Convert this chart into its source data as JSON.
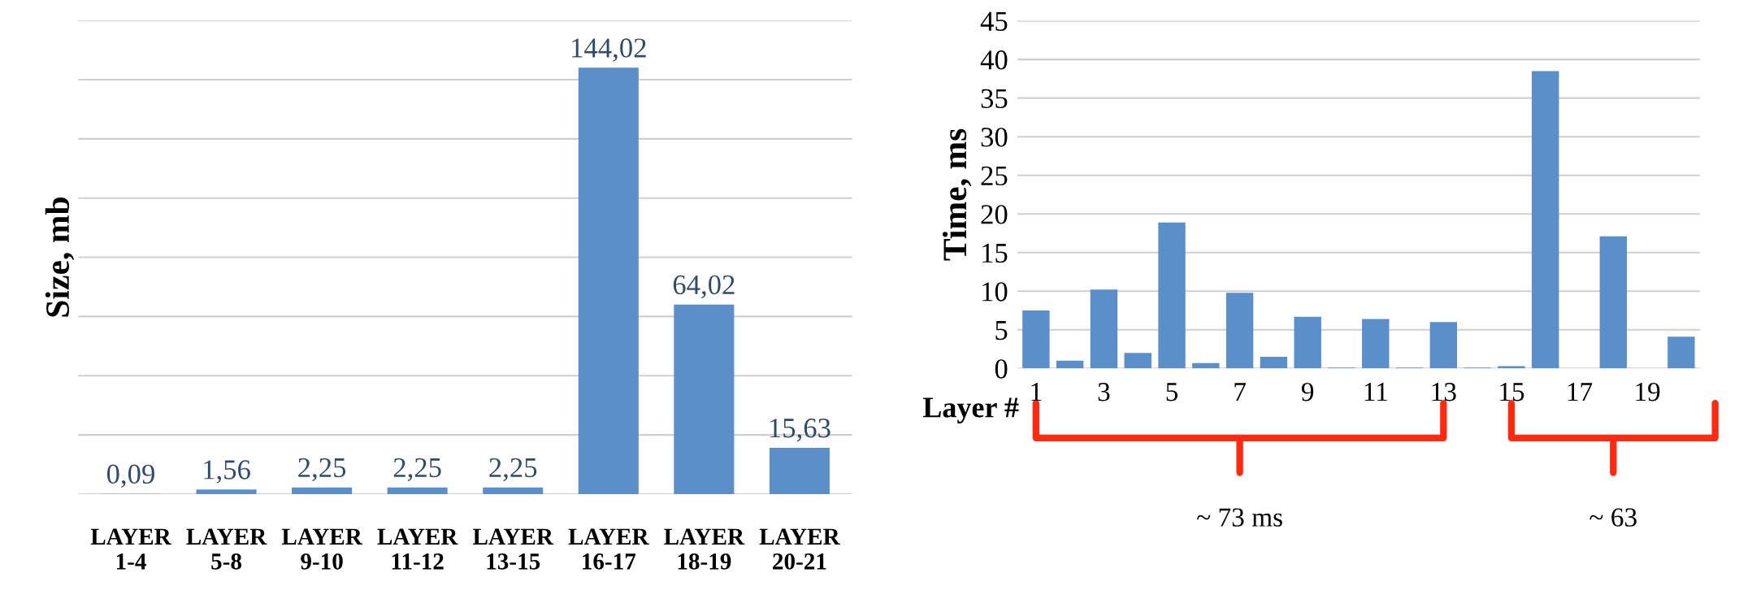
{
  "chart_data": [
    {
      "type": "bar",
      "ylabel": "Size, mb",
      "categories": [
        "LAYER\n1-4",
        "LAYER\n5-8",
        "LAYER\n9-10",
        "LAYER\n11-12",
        "LAYER\n13-15",
        "LAYER\n16-17",
        "LAYER\n18-19",
        "LAYER\n20-21"
      ],
      "values": [
        0.09,
        1.56,
        2.25,
        2.25,
        2.25,
        144.02,
        64.02,
        15.63
      ],
      "value_labels": [
        "0,09",
        "1,56",
        "2,25",
        "2,25",
        "2,25",
        "144,02",
        "64,02",
        "15,63"
      ],
      "color": "#5b8fc9",
      "ylim": [
        0,
        160
      ],
      "yticks": [
        {
          "value": 0,
          "label": null
        },
        {
          "value": 20,
          "label": null
        },
        {
          "value": 40,
          "label": null
        },
        {
          "value": 60,
          "label": null
        },
        {
          "value": 80,
          "label": null
        },
        {
          "value": 100,
          "label": null
        },
        {
          "value": 120,
          "label": null
        },
        {
          "value": 140,
          "label": null
        },
        {
          "value": 160,
          "label": null
        }
      ],
      "grid": "y",
      "tick_labels": "x"
    },
    {
      "type": "bar",
      "ylabel": "Time, ms",
      "xlabel": "Layer #",
      "categories": [
        "1",
        null,
        "3",
        null,
        "5",
        null,
        "7",
        null,
        "9",
        null,
        "11",
        null,
        "13",
        null,
        "15",
        null,
        "17",
        null,
        "19",
        null
      ],
      "values": [
        7.5,
        1.0,
        10.2,
        2.0,
        18.9,
        0.7,
        9.8,
        1.5,
        6.7,
        0.1,
        6.4,
        0.1,
        6.0,
        0.1,
        0.3,
        38.5,
        0,
        17.1,
        0,
        4.1
      ],
      "color": "#5b8fc9",
      "ylim": [
        0,
        45
      ],
      "yticks": [
        0,
        5,
        10,
        15,
        20,
        25,
        30,
        35,
        40,
        45
      ],
      "grid": "y",
      "annotations": [
        "~ 73 ms",
        "~ 63"
      ]
    }
  ]
}
